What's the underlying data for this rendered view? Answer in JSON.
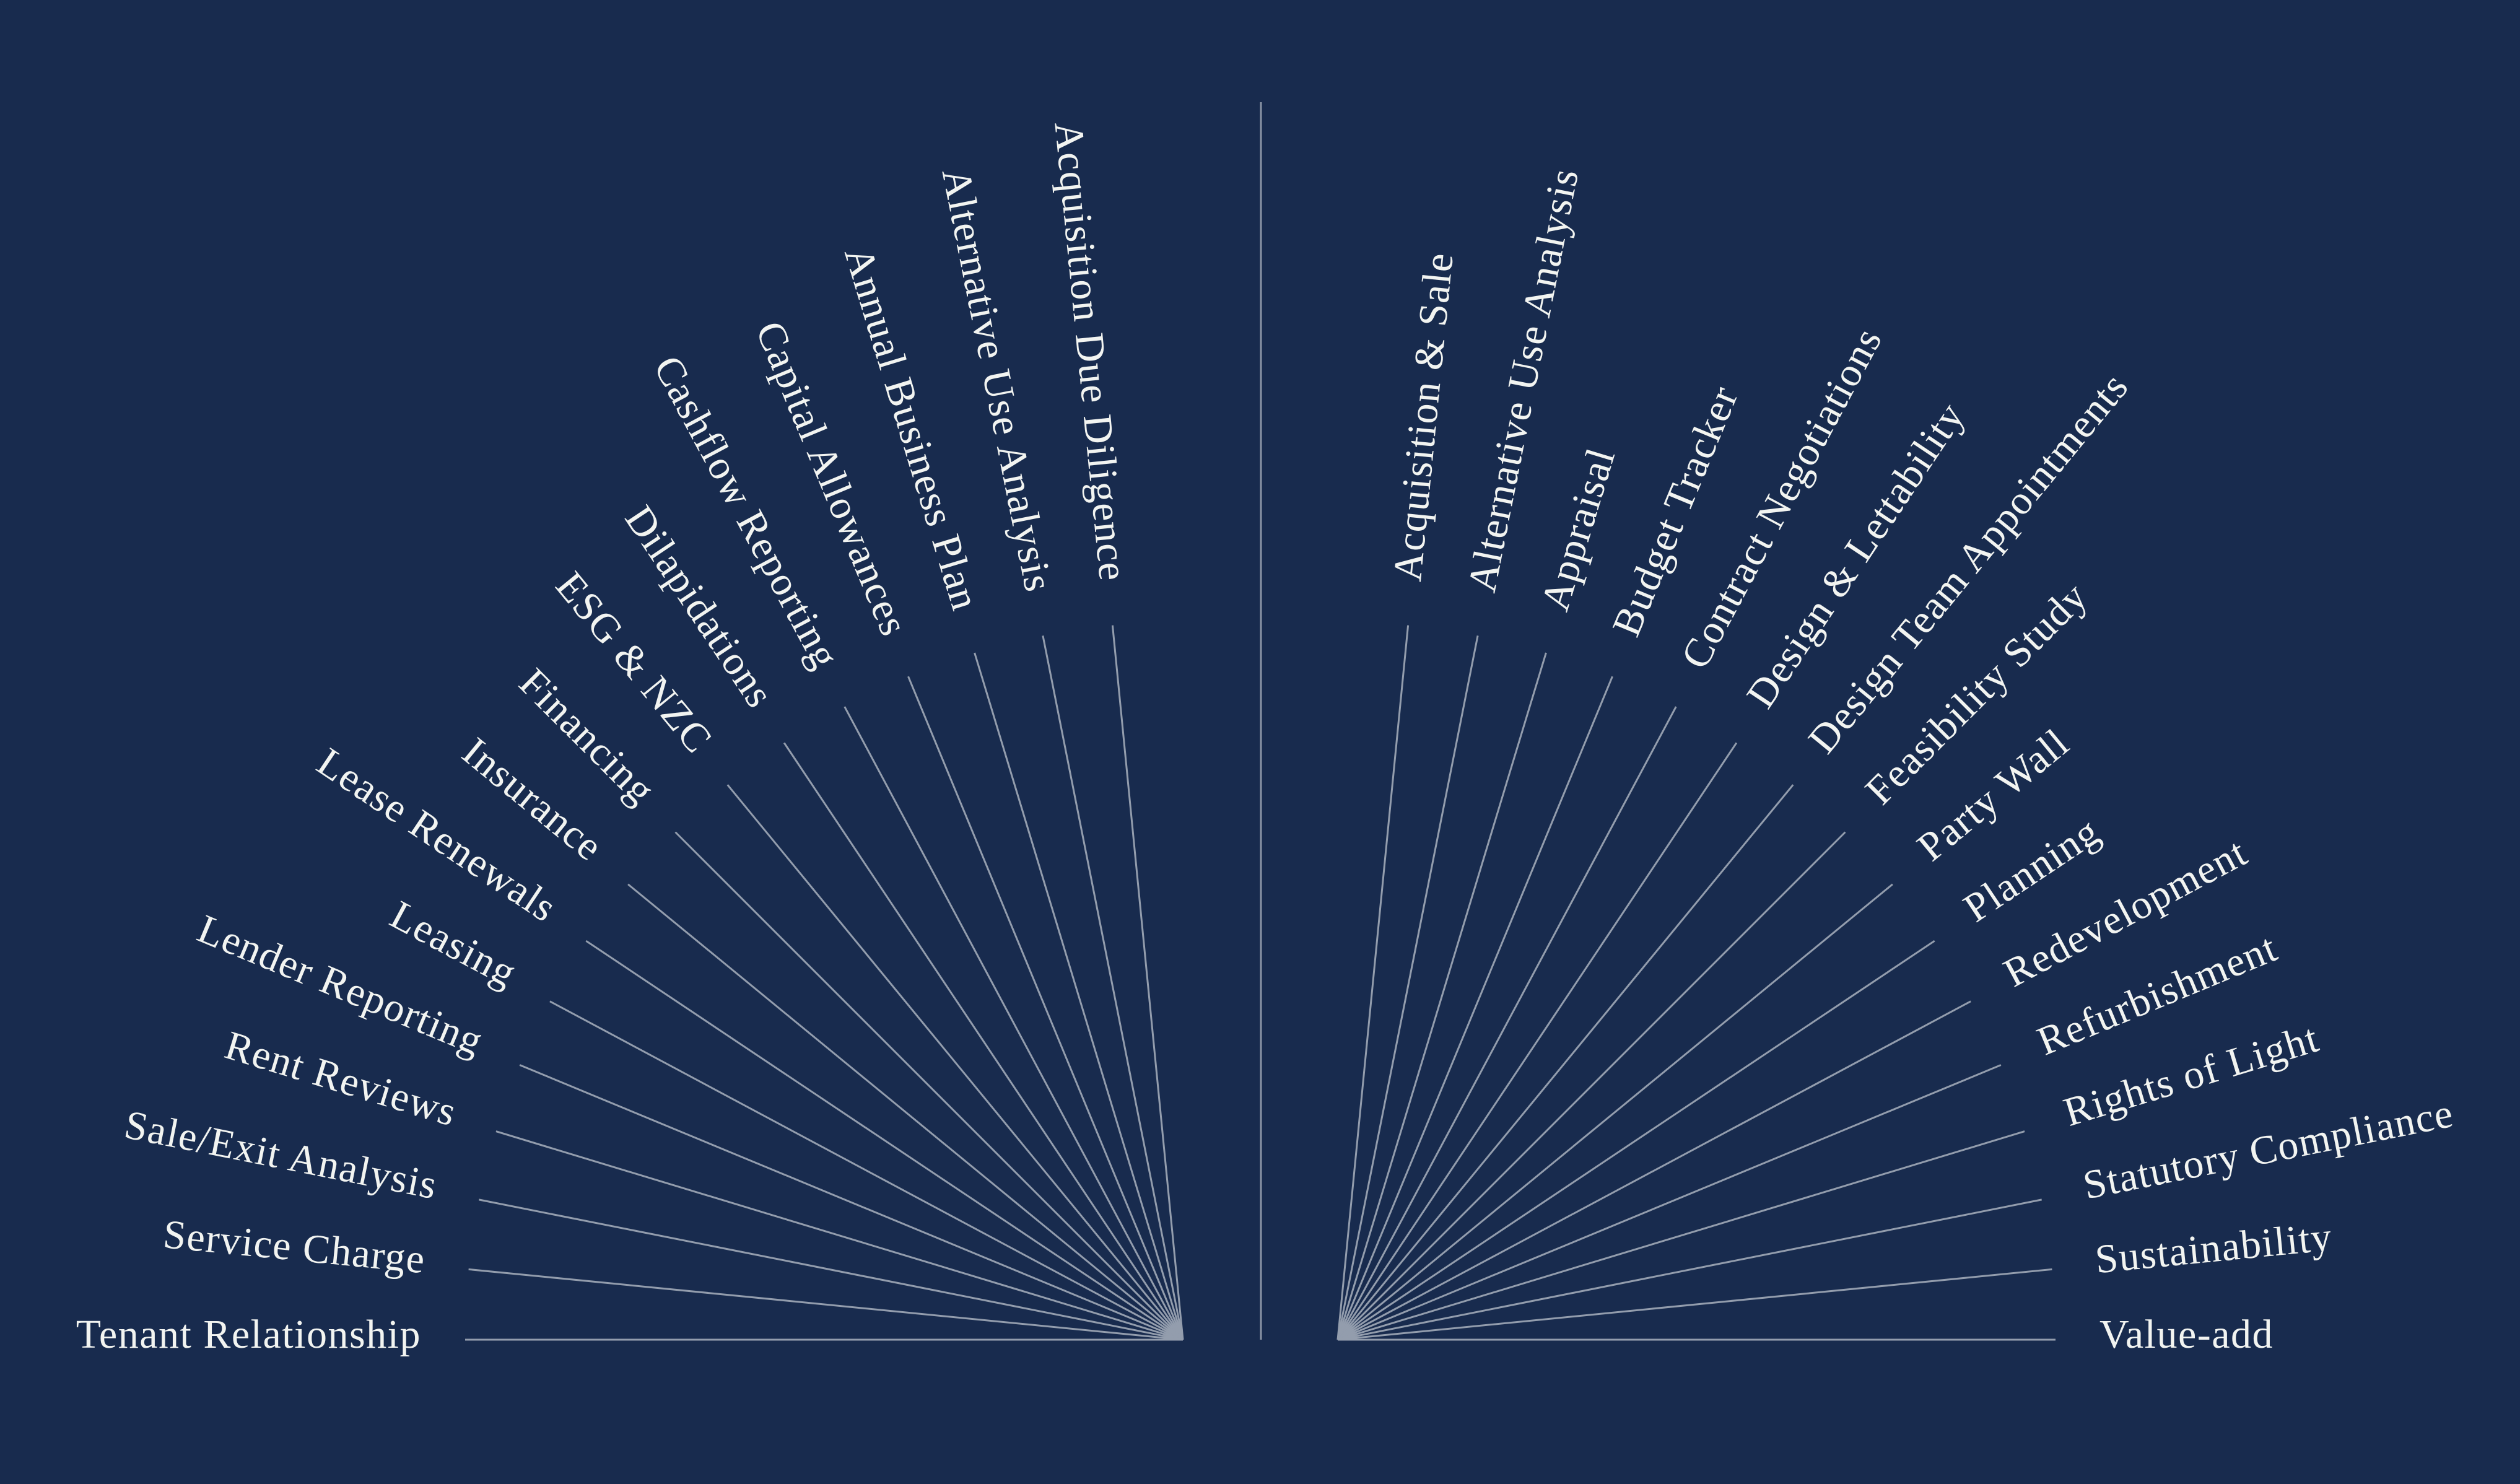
{
  "colors": {
    "background": "#182B4E",
    "ray": "#939DAD",
    "divider": "#8A94A5",
    "text": "#F2F4F1"
  },
  "left_fan": {
    "name": "asset-management-fan",
    "items": [
      "Acquisition Due Diligence",
      "Alternative Use Analysis",
      "Annual Business Plan",
      "Capital Allowances",
      "Cashflow Reporting",
      "Dilapidations",
      "ESG & NZC",
      "Financing",
      "Insurance",
      "Lease Renewals",
      "Leasing",
      "Lender Reporting",
      "Rent Reviews",
      "Sale/Exit Analysis",
      "Service Charge",
      "Tenant Relationship"
    ]
  },
  "right_fan": {
    "name": "development-fan",
    "items": [
      "Acquisition & Sale",
      "Alternative Use Analysis",
      "Appraisal",
      "Budget Tracker",
      "Contract Negotiations",
      "Design & Lettability",
      "Design Team Appointments",
      "Feasibility Study",
      "Party Wall",
      "Planning",
      "Redevelopment",
      "Refurbishment",
      "Rights of Light",
      "Statutory Compliance",
      "Sustainability",
      "Value-add"
    ]
  }
}
